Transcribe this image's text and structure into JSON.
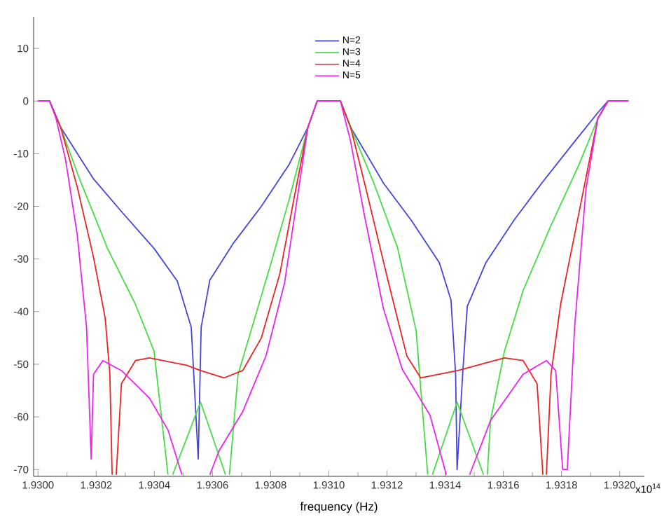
{
  "chart_data": {
    "type": "line",
    "xlabel": "frequency (Hz)",
    "annotations": [
      "x10$^{14}$"
    ],
    "xlim": [
      1.929985,
      1.932085
    ],
    "ylim": [
      -71.3,
      16
    ],
    "xticks": [
      {
        "value": 1.93,
        "label": "1.9300"
      },
      {
        "value": 1.9302,
        "label": "1.9302"
      },
      {
        "value": 1.9304,
        "label": "1.9304"
      },
      {
        "value": 1.9306,
        "label": "1.9306"
      },
      {
        "value": 1.9308,
        "label": "1.9308"
      },
      {
        "value": 1.931,
        "label": "1.9310"
      },
      {
        "value": 1.9312,
        "label": "1.9312"
      },
      {
        "value": 1.9314,
        "label": "1.9314"
      },
      {
        "value": 1.9316,
        "label": "1.9316"
      },
      {
        "value": 1.9318,
        "label": "1.9318"
      },
      {
        "value": 1.932,
        "label": "1.9320"
      }
    ],
    "yticks": [
      -70,
      -60,
      -50,
      -40,
      -30,
      -20,
      -10,
      0,
      10
    ],
    "legend": "top",
    "grid": false,
    "marker": "none",
    "line_style": "solid",
    "series": [
      {
        "name": "N=2",
        "color": "#4444dd",
        "x": [
          1.93,
          1.93004,
          1.930078,
          1.930191,
          1.930287,
          1.930399,
          1.930479,
          1.930527,
          1.930551,
          1.930561,
          1.930591,
          1.930672,
          1.930768,
          1.930864,
          1.930928,
          1.93096,
          1.93104,
          1.931075,
          1.931188,
          1.931284,
          1.93138,
          1.93142,
          1.931436,
          1.931441,
          1.93146,
          1.931476,
          1.93154,
          1.931636,
          1.931732,
          1.931845,
          1.931925,
          1.93196,
          1.93203
        ],
        "values": [
          0,
          0,
          -5,
          -14.8,
          -21,
          -28,
          -34.2,
          -43,
          -68,
          -43,
          -34,
          -27,
          -20,
          -12,
          -5,
          0,
          0,
          -5,
          -15.6,
          -22.7,
          -30.7,
          -37.8,
          -52,
          -70,
          -52,
          -39,
          -30.7,
          -22.7,
          -15.6,
          -7.7,
          -2.2,
          0,
          0
        ]
      },
      {
        "name": "N=3",
        "color": "#44dd44",
        "x": [
          1.93,
          1.93004,
          1.930078,
          1.930143,
          1.930239,
          1.930335,
          1.930399,
          1.930447,
          1.930455,
          1.930463,
          1.930559,
          1.930645,
          1.930651,
          1.930658,
          1.930688,
          1.930736,
          1.9308,
          1.930864,
          1.930928,
          1.93096,
          1.93104,
          1.931075,
          1.931155,
          1.931236,
          1.9313,
          1.93134,
          1.931348,
          1.931356,
          1.931441,
          1.931532,
          1.931538,
          1.931545,
          1.931556,
          1.931604,
          1.931668,
          1.931764,
          1.93186,
          1.931925,
          1.93196,
          1.93203
        ],
        "values": [
          0,
          0,
          -5,
          -14.8,
          -28,
          -38.6,
          -47.5,
          -71,
          null,
          -71,
          -57.2,
          -71,
          null,
          -71,
          -51.9,
          -43,
          -31,
          -18.6,
          -5,
          0,
          0,
          -5,
          -15.6,
          -27.8,
          -43.6,
          -71,
          null,
          -71,
          -57.2,
          -71,
          null,
          -71,
          -60.7,
          -47.5,
          -36,
          -23.6,
          -12.1,
          -3.3,
          0,
          0
        ]
      },
      {
        "name": "N=4",
        "color": "#ee2222",
        "x": [
          1.93,
          1.93004,
          1.930078,
          1.930135,
          1.930191,
          1.930231,
          1.930247,
          1.930255,
          1.930262,
          1.930269,
          1.930287,
          1.930335,
          1.930383,
          1.930511,
          1.930559,
          1.930639,
          1.930704,
          1.930768,
          1.930832,
          1.93088,
          1.930928,
          1.93096,
          1.93104,
          1.931075,
          1.931123,
          1.931204,
          1.931268,
          1.931316,
          1.931444,
          1.931604,
          1.931668,
          1.931716,
          1.931736,
          1.931742,
          1.931748,
          1.931764,
          1.931797,
          1.931845,
          1.931893,
          1.931925,
          1.93196,
          1.93203
        ],
        "values": [
          0,
          0,
          -5,
          -16.3,
          -29.7,
          -41.2,
          -51.7,
          -71,
          null,
          -71,
          -53.7,
          -49.3,
          -48.8,
          -50.2,
          -51.2,
          -52.6,
          -51.2,
          -45,
          -32.7,
          -18.6,
          -5,
          0,
          0,
          -5,
          -15.6,
          -34.2,
          -48.4,
          -52.6,
          -51.2,
          -48.8,
          -49.3,
          -53.7,
          -71,
          null,
          -71,
          -51.9,
          -38.6,
          -25.4,
          -12.1,
          -3.3,
          0,
          0
        ]
      },
      {
        "name": "N=5",
        "color": "#ee22ee",
        "x": [
          1.93,
          1.93004,
          1.930062,
          1.930095,
          1.930135,
          1.930167,
          1.930183,
          1.930191,
          1.930223,
          1.930287,
          1.930383,
          1.930447,
          1.930495,
          1.930543,
          1.930591,
          1.930623,
          1.930704,
          1.930784,
          1.930848,
          1.930896,
          1.930928,
          1.93096,
          1.93104,
          1.931075,
          1.931123,
          1.931188,
          1.931252,
          1.931348,
          1.931404,
          1.931444,
          1.931484,
          1.931556,
          1.931668,
          1.931748,
          1.93178,
          1.931804,
          1.93182,
          1.931845,
          1.931884,
          1.931925,
          1.93196,
          1.93203
        ],
        "values": [
          0,
          0,
          -3.3,
          -11.2,
          -25.4,
          -43,
          -68,
          -51.9,
          -49.3,
          -51.2,
          -56.4,
          -62.5,
          -71,
          null,
          -71,
          -66.4,
          -59,
          -48.4,
          -34.5,
          -16.8,
          -5,
          0,
          0,
          -7.7,
          -21.9,
          -39.5,
          -50.9,
          -59.7,
          -71,
          null,
          -71,
          -60.7,
          -51.9,
          -49.3,
          -51.2,
          -70,
          -70,
          -43,
          -16.8,
          -3.3,
          0,
          0
        ]
      }
    ]
  }
}
